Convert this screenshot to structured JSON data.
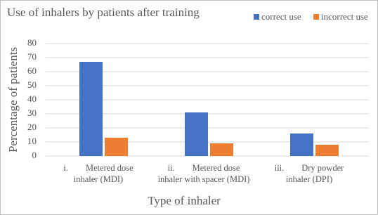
{
  "chart_data": {
    "type": "bar",
    "title": "Use of inhalers by patients after training",
    "x_label": "Type of inhaler",
    "y_label": "Percentage of patients",
    "categories": [
      [
        "i.        Metered dose",
        "inhaler (MDI)"
      ],
      [
        "ii.        Metered dose",
        "inhaler with spacer (MDI)"
      ],
      [
        "iii.        Dry powder",
        "inhaler (DPI)"
      ]
    ],
    "series": [
      {
        "name": "correct use",
        "color": "#4472c4",
        "values": [
          67,
          31,
          16
        ]
      },
      {
        "name": "incorrect use",
        "color": "#ed7d31",
        "values": [
          13,
          9,
          8
        ]
      }
    ],
    "ylim": [
      0,
      80
    ],
    "yticks": [
      0,
      10,
      20,
      30,
      40,
      50,
      60,
      70,
      80
    ],
    "grid": true,
    "legend": "top-right"
  }
}
